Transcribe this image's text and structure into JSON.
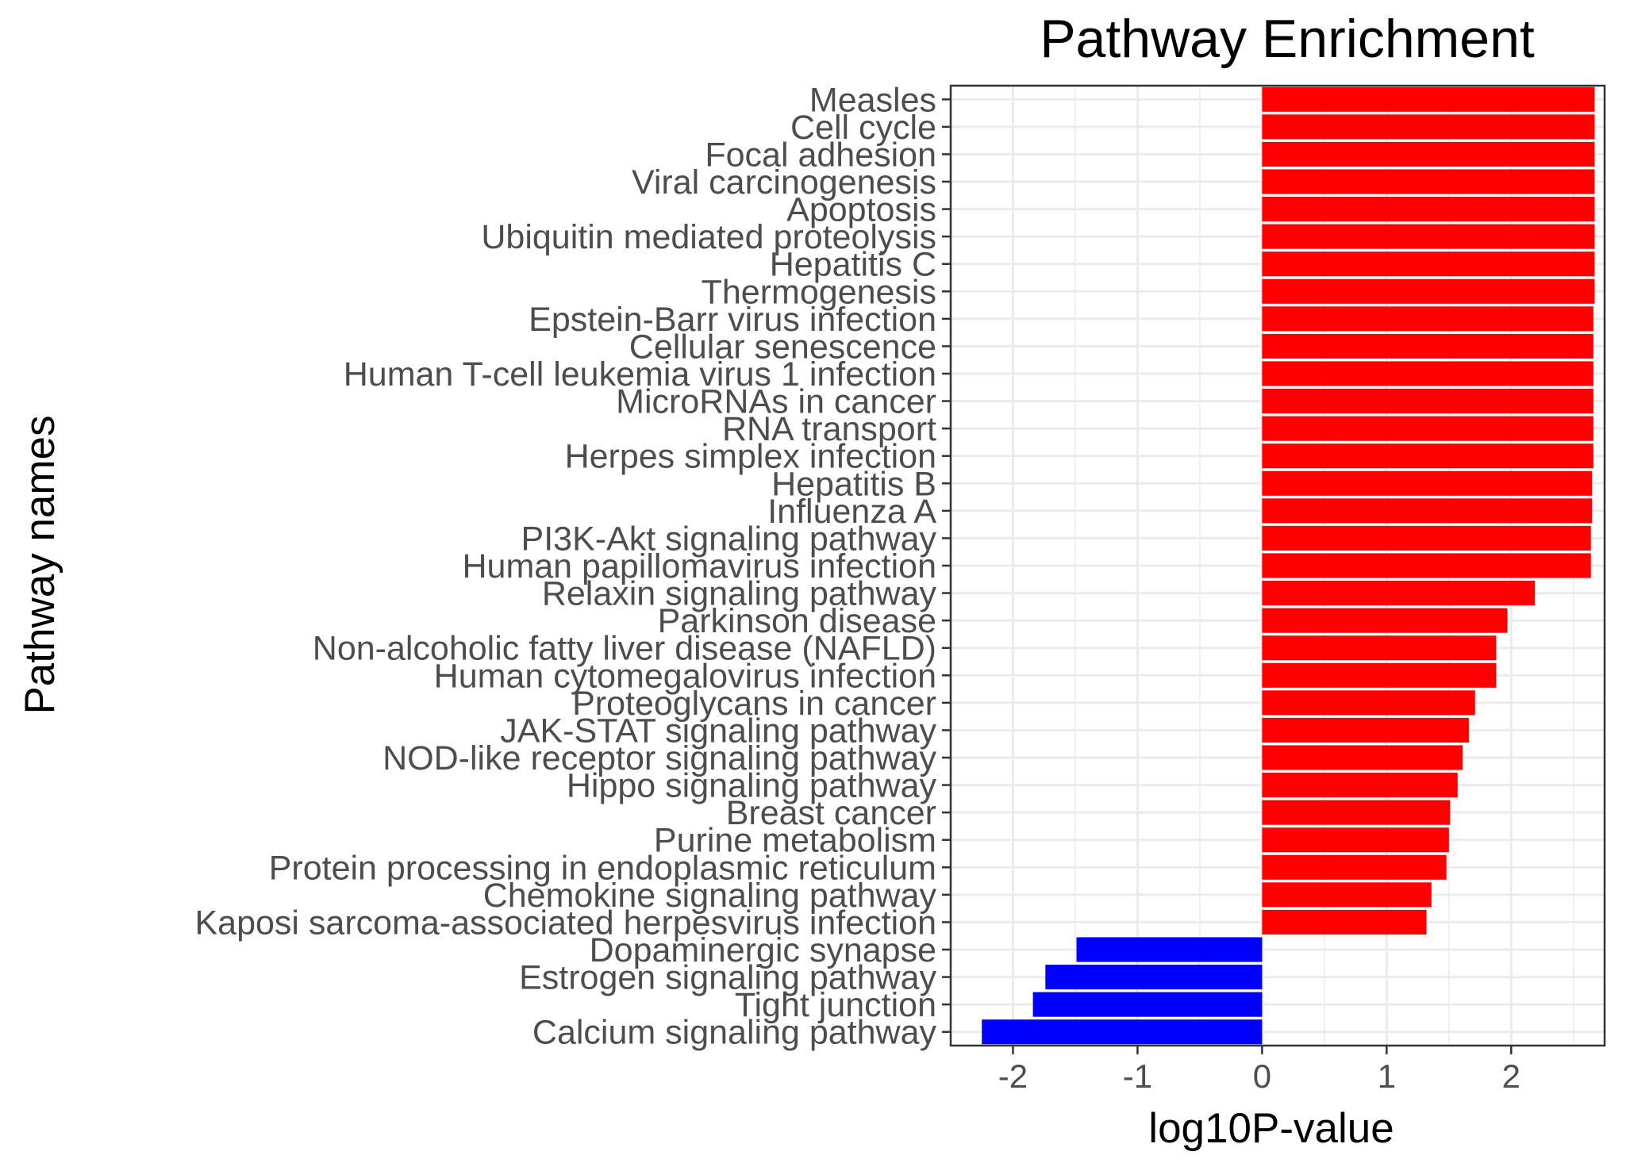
{
  "chart_data": {
    "type": "bar",
    "orientation": "horizontal",
    "title": "Pathway Enrichment",
    "xlabel": "log10P-value",
    "ylabel": "Pathway names",
    "xlim": [
      -2.5,
      2.75
    ],
    "xticks": [
      -2,
      -1,
      0,
      1,
      2
    ],
    "xtick_labels": [
      "-2",
      "-1",
      "0",
      "1",
      "2"
    ],
    "grid": true,
    "colors": {
      "positive": "#ff0000",
      "negative": "#0000ff"
    },
    "categories": [
      "Measles",
      "Cell cycle",
      "Focal adhesion",
      "Viral carcinogenesis",
      "Apoptosis",
      "Ubiquitin mediated proteolysis",
      "Hepatitis C",
      "Thermogenesis",
      "Epstein-Barr virus infection",
      "Cellular senescence",
      "Human T-cell leukemia virus 1 infection",
      "MicroRNAs in cancer",
      "RNA transport",
      "Herpes simplex infection",
      "Hepatitis B",
      "Influenza A",
      "PI3K-Akt signaling pathway",
      "Human papillomavirus infection",
      "Relaxin signaling pathway",
      "Parkinson disease",
      "Non-alcoholic fatty liver disease (NAFLD)",
      "Human cytomegalovirus infection",
      "Proteoglycans in cancer",
      "JAK-STAT signaling pathway",
      "NOD-like receptor signaling pathway",
      "Hippo signaling pathway",
      "Breast cancer",
      "Purine metabolism",
      "Protein processing in endoplasmic reticulum",
      "Chemokine signaling pathway",
      "Kaposi sarcoma-associated herpesvirus infection",
      "Dopaminergic synapse",
      "Estrogen signaling pathway",
      "Tight junction",
      "Calcium signaling pathway"
    ],
    "values": [
      2.67,
      2.67,
      2.67,
      2.67,
      2.67,
      2.67,
      2.67,
      2.67,
      2.66,
      2.66,
      2.66,
      2.66,
      2.66,
      2.66,
      2.65,
      2.65,
      2.64,
      2.64,
      2.19,
      1.97,
      1.88,
      1.88,
      1.71,
      1.66,
      1.61,
      1.57,
      1.51,
      1.5,
      1.48,
      1.36,
      1.32,
      -1.49,
      -1.74,
      -1.84,
      -2.25
    ]
  }
}
